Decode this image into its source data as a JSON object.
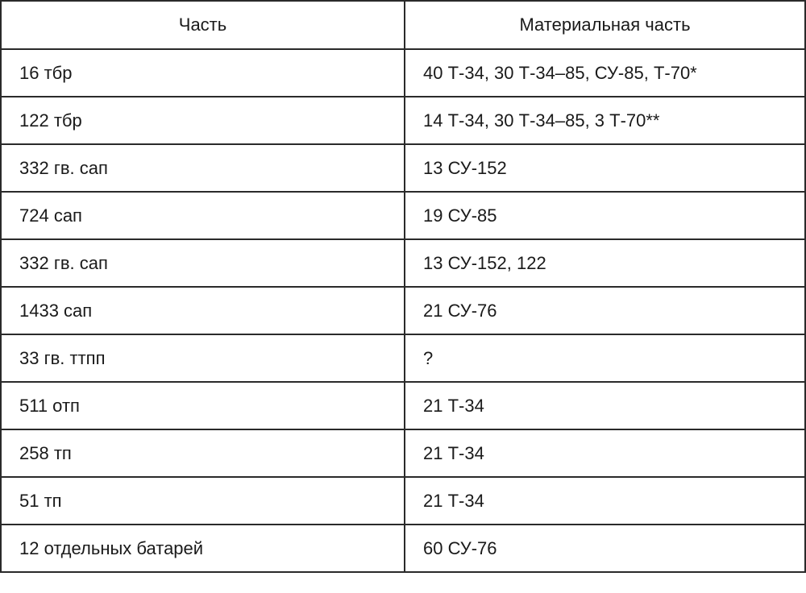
{
  "table": {
    "headers": [
      "Часть",
      "Материальная часть"
    ],
    "rows": [
      [
        "16 тбр",
        "40 Т-34, 30 Т-34–85, СУ-85, Т-70*"
      ],
      [
        "122 тбр",
        "14 Т-34, 30 Т-34–85, 3 Т-70**"
      ],
      [
        "332 гв. сап",
        "13 СУ-152"
      ],
      [
        "724 сап",
        "19 СУ-85"
      ],
      [
        "332 гв. сап",
        "13 СУ-152, 122"
      ],
      [
        "1433 сап",
        "21 СУ-76"
      ],
      [
        "33 гв. ттпп",
        "?"
      ],
      [
        "511 отп",
        "21 Т-34"
      ],
      [
        "258 тп",
        "21 Т-34"
      ],
      [
        "51 тп",
        "21 Т-34"
      ],
      [
        "12 отдельных батарей",
        "60 СУ-76"
      ]
    ]
  }
}
